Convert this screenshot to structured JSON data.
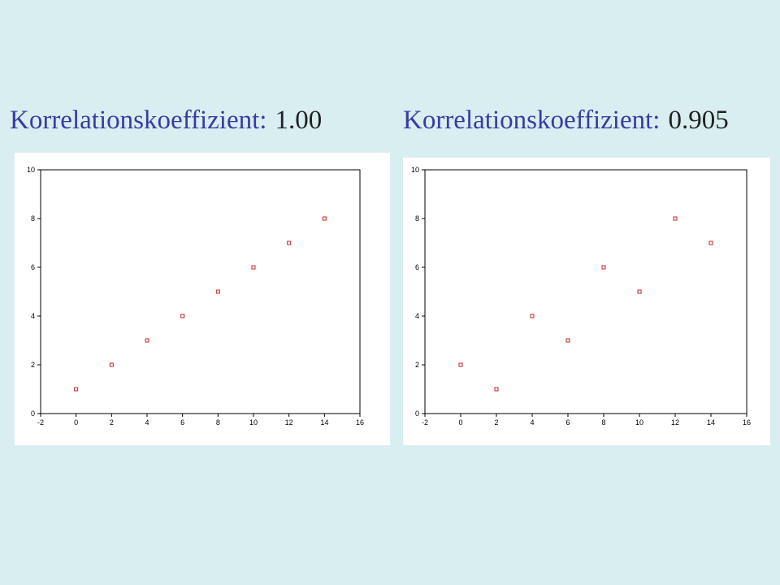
{
  "headings": [
    {
      "label": "Korrelationskoeffizient:",
      "value": "1.00"
    },
    {
      "label": "Korrelationskoeffizient:",
      "value": "0.905"
    }
  ],
  "colors": {
    "background": "#d9eef0",
    "heading_label": "#3a3aa6",
    "heading_value": "#1f2222",
    "marker": "#cc2222"
  },
  "chart_data": [
    {
      "type": "scatter",
      "xlim": [
        -2,
        16
      ],
      "ylim": [
        0,
        10
      ],
      "xticks": [
        "-2",
        "0",
        "2",
        "4",
        "6",
        "8",
        "10",
        "12",
        "14",
        "16"
      ],
      "yticks": [
        "0",
        "2",
        "4",
        "6",
        "8",
        "10"
      ],
      "grid": false,
      "points": [
        {
          "x": 0,
          "y": 1
        },
        {
          "x": 2,
          "y": 2
        },
        {
          "x": 4,
          "y": 3
        },
        {
          "x": 6,
          "y": 4
        },
        {
          "x": 8,
          "y": 5
        },
        {
          "x": 10,
          "y": 6
        },
        {
          "x": 12,
          "y": 7
        },
        {
          "x": 14,
          "y": 8
        }
      ]
    },
    {
      "type": "scatter",
      "xlim": [
        -2,
        16
      ],
      "ylim": [
        0,
        10
      ],
      "xticks": [
        "-2",
        "0",
        "2",
        "4",
        "6",
        "8",
        "10",
        "12",
        "14",
        "16"
      ],
      "yticks": [
        "0",
        "2",
        "4",
        "6",
        "8",
        "10"
      ],
      "grid": false,
      "points": [
        {
          "x": 0,
          "y": 2
        },
        {
          "x": 2,
          "y": 1
        },
        {
          "x": 4,
          "y": 4
        },
        {
          "x": 6,
          "y": 3
        },
        {
          "x": 8,
          "y": 6
        },
        {
          "x": 10,
          "y": 5
        },
        {
          "x": 12,
          "y": 8
        },
        {
          "x": 14,
          "y": 7
        }
      ]
    }
  ]
}
